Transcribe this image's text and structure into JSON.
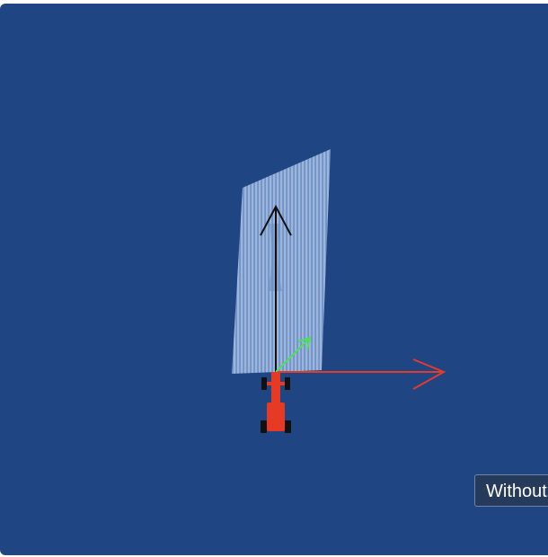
{
  "viewer": {
    "background_color": "#1f4583",
    "scan_color": "#a9c3e6",
    "axes": {
      "x_axis_color": "#e23b2e",
      "y_axis_color": "#111111",
      "z_axis_color": "#4ee05a"
    },
    "robot": {
      "body_color": "#e63a25",
      "wheel_color": "#111111"
    },
    "icons": [
      "robot-icon",
      "axis-arrow-icon"
    ]
  },
  "tooltip": {
    "text": "Without"
  }
}
